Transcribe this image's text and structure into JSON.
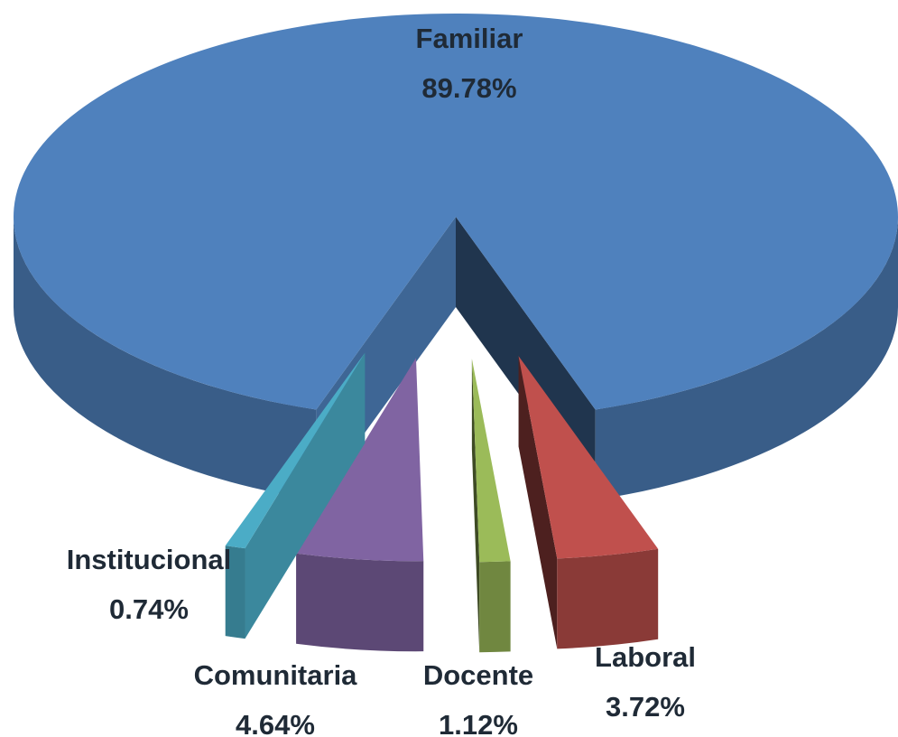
{
  "chart_data": {
    "type": "pie3d",
    "categories": [
      "Familiar",
      "Laboral",
      "Docente",
      "Comunitaria",
      "Institucional"
    ],
    "values": [
      89.78,
      3.72,
      1.12,
      4.64,
      0.74
    ],
    "value_labels": [
      "89.78%",
      "3.72%",
      "1.12%",
      "4.64%",
      "0.74%"
    ],
    "colors": [
      "#4f81bd",
      "#c0504d",
      "#9bbb59",
      "#8064a2",
      "#4bacc6"
    ]
  }
}
